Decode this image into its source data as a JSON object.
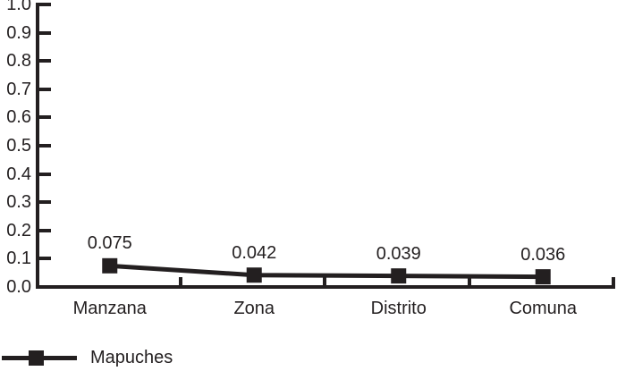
{
  "chart_data": {
    "type": "line",
    "categories": [
      "Manzana",
      "Zona",
      "Distrito",
      "Comuna"
    ],
    "series": [
      {
        "name": "Mapuches",
        "values": [
          0.075,
          0.042,
          0.039,
          0.036
        ],
        "data_labels": [
          "0.075",
          "0.042",
          "0.039",
          "0.036"
        ],
        "color": "#231f20",
        "marker": "square"
      }
    ],
    "ylim": [
      0.0,
      1.0
    ],
    "ytick_step": 0.1,
    "ytick_labels": [
      "0.0",
      "0.1",
      "0.2",
      "0.3",
      "0.4",
      "0.5",
      "0.6",
      "0.7",
      "0.8",
      "0.9",
      "1.0"
    ],
    "grid": false,
    "legend_position": "bottom-left",
    "axis_color": "#231f20",
    "background_color": "#ffffff"
  }
}
